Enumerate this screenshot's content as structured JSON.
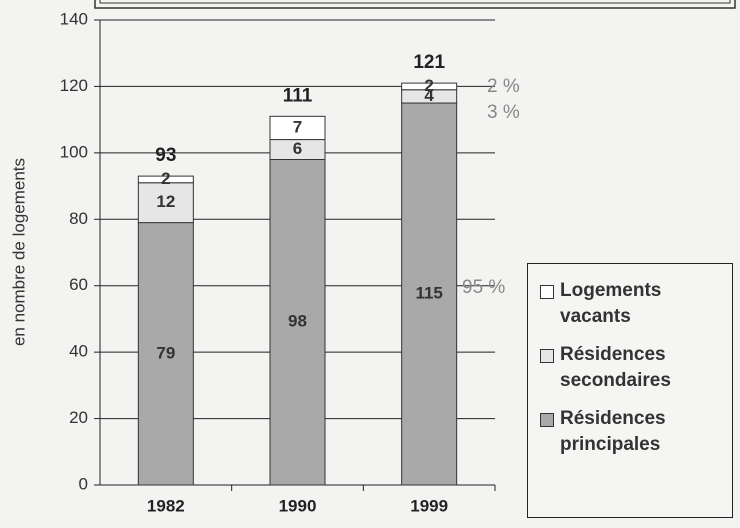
{
  "chart_data": {
    "type": "stacked_bar",
    "y_axis_label": "en nombre de logements",
    "categories": [
      "1982",
      "1990",
      "1999"
    ],
    "series": [
      {
        "name": "Résidences principales",
        "color": "#a9a9a9",
        "values": [
          79,
          98,
          115
        ]
      },
      {
        "name": "Résidences secondaires",
        "color": "#e6e6e6",
        "values": [
          12,
          6,
          4
        ]
      },
      {
        "name": "Logements vacants",
        "color": "#ffffff",
        "values": [
          2,
          7,
          2
        ]
      }
    ],
    "totals": [
      93,
      111,
      121
    ],
    "annotations": [
      "2 %",
      "3 %",
      "95 %"
    ],
    "ylim": [
      0,
      140
    ],
    "yticks": [
      0,
      20,
      40,
      60,
      80,
      100,
      120,
      140
    ],
    "grid": true,
    "legend": "right"
  }
}
